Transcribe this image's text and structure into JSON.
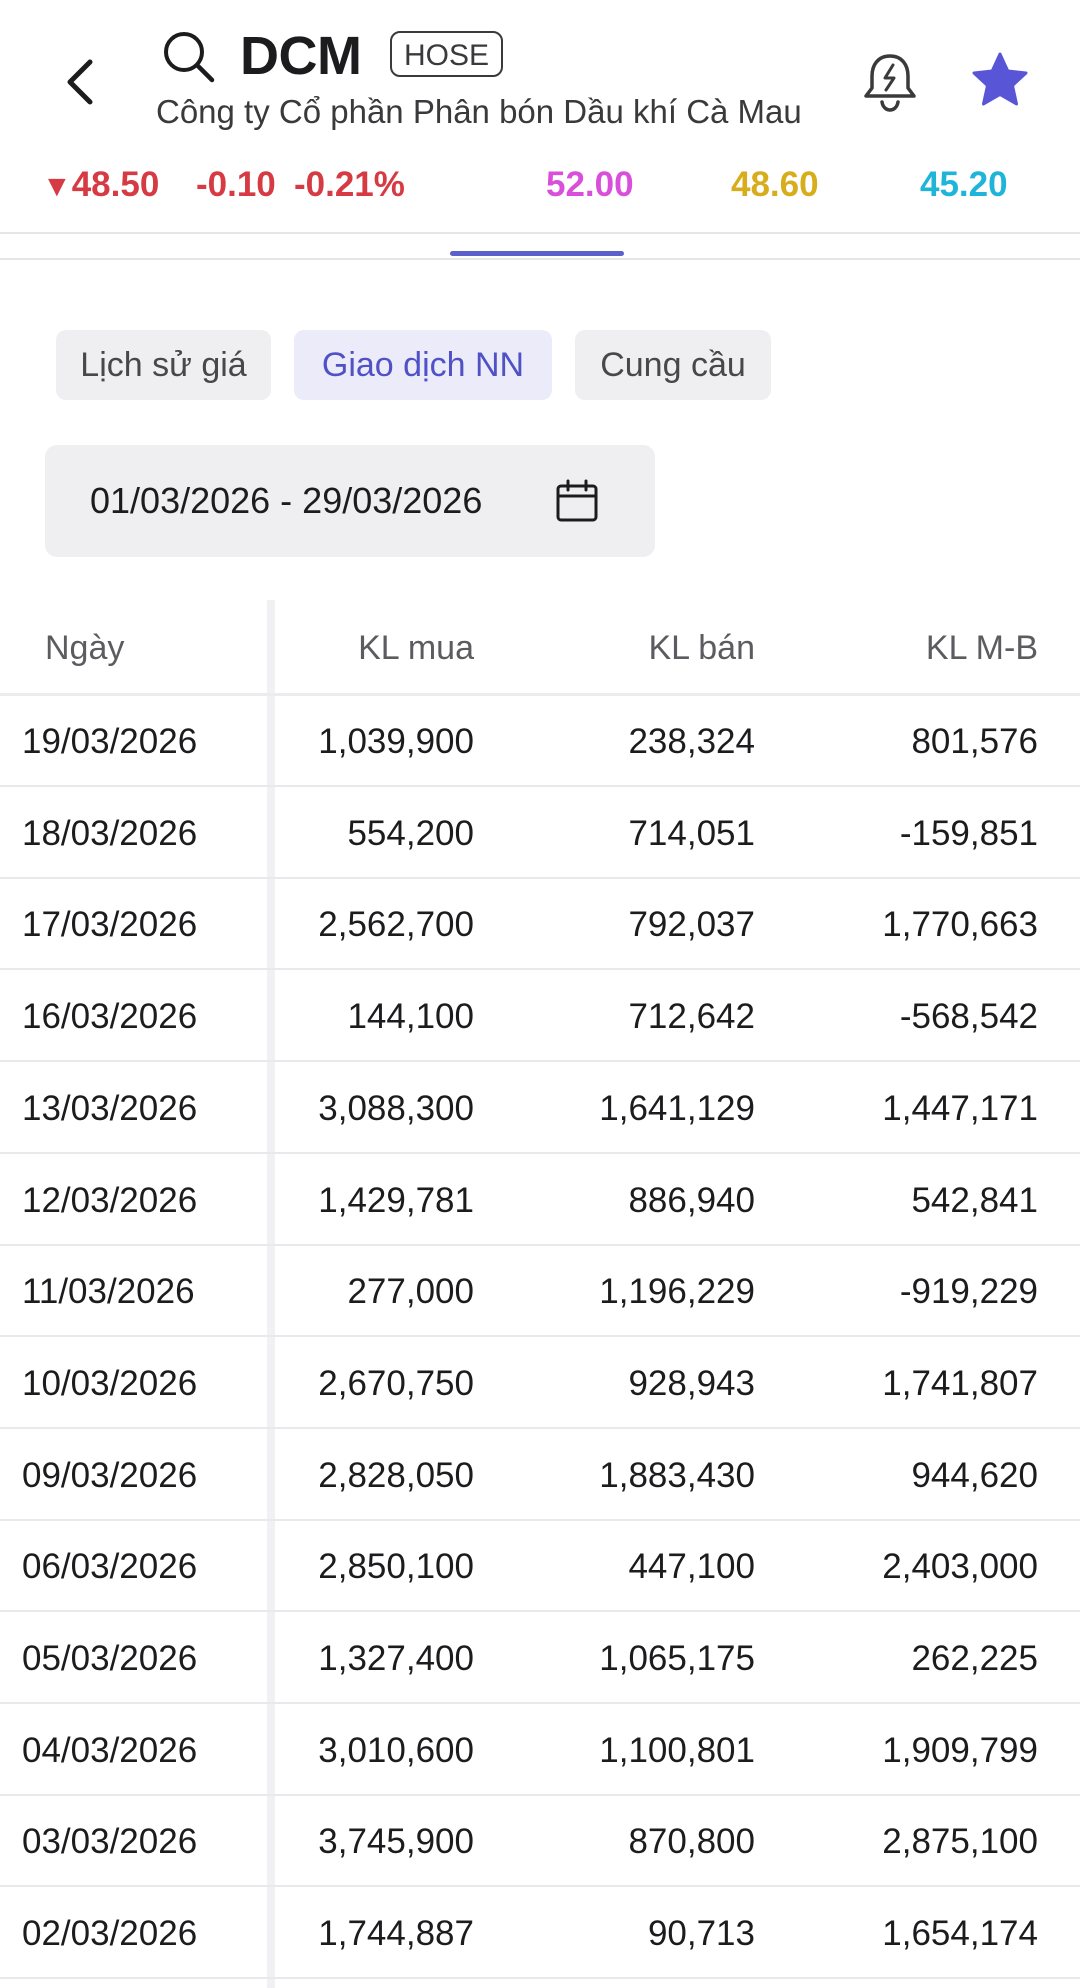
{
  "header": {
    "symbol": "DCM",
    "exchange": "HOSE",
    "company_name": "Công ty Cổ phần Phân bón Dầu khí Cà Mau",
    "icons": {
      "back": "chevron-left-icon",
      "search": "search-icon",
      "bell": "bell-icon",
      "star": "star-icon"
    },
    "star_color": "#5856d6"
  },
  "price": {
    "direction_glyph": "▼",
    "last": "48.50",
    "change": "-0.10",
    "change_pct": "-0.21%",
    "ceiling": "52.00",
    "reference": "48.60",
    "floor": "45.20"
  },
  "colors": {
    "down": "#d63a43",
    "up": "#1b9a6b",
    "ceiling": "#d94fdb",
    "reference": "#d8ad1c",
    "floor": "#1eb5d8",
    "accent": "#5d5fcb"
  },
  "segments": [
    {
      "label": "Lịch sử giá",
      "active": false
    },
    {
      "label": "Giao dịch NN",
      "active": true
    },
    {
      "label": "Cung cầu",
      "active": false
    }
  ],
  "date_range": {
    "label": "01/03/2026 - 29/03/2026",
    "icon": "calendar-icon"
  },
  "table": {
    "columns": [
      "Ngày",
      "KL mua",
      "KL bán",
      "KL M-B"
    ],
    "rows": [
      {
        "date": "19/03/2026",
        "buy": "1,039,900",
        "sell": "238,324",
        "net": "801,576",
        "dir": "up"
      },
      {
        "date": "18/03/2026",
        "buy": "554,200",
        "sell": "714,051",
        "net": "-159,851",
        "dir": "down"
      },
      {
        "date": "17/03/2026",
        "buy": "2,562,700",
        "sell": "792,037",
        "net": "1,770,663",
        "dir": "up"
      },
      {
        "date": "16/03/2026",
        "buy": "144,100",
        "sell": "712,642",
        "net": "-568,542",
        "dir": "down"
      },
      {
        "date": "13/03/2026",
        "buy": "3,088,300",
        "sell": "1,641,129",
        "net": "1,447,171",
        "dir": "up"
      },
      {
        "date": "12/03/2026",
        "buy": "1,429,781",
        "sell": "886,940",
        "net": "542,841",
        "dir": "up"
      },
      {
        "date": "11/03/2026",
        "buy": "277,000",
        "sell": "1,196,229",
        "net": "-919,229",
        "dir": "down"
      },
      {
        "date": "10/03/2026",
        "buy": "2,670,750",
        "sell": "928,943",
        "net": "1,741,807",
        "dir": "up"
      },
      {
        "date": "09/03/2026",
        "buy": "2,828,050",
        "sell": "1,883,430",
        "net": "944,620",
        "dir": "up"
      },
      {
        "date": "06/03/2026",
        "buy": "2,850,100",
        "sell": "447,100",
        "net": "2,403,000",
        "dir": "up"
      },
      {
        "date": "05/03/2026",
        "buy": "1,327,400",
        "sell": "1,065,175",
        "net": "262,225",
        "dir": "up"
      },
      {
        "date": "04/03/2026",
        "buy": "3,010,600",
        "sell": "1,100,801",
        "net": "1,909,799",
        "dir": "up"
      },
      {
        "date": "03/03/2026",
        "buy": "3,745,900",
        "sell": "870,800",
        "net": "2,875,100",
        "dir": "up"
      },
      {
        "date": "02/03/2026",
        "buy": "1,744,887",
        "sell": "90,713",
        "net": "1,654,174",
        "dir": "up"
      }
    ]
  }
}
